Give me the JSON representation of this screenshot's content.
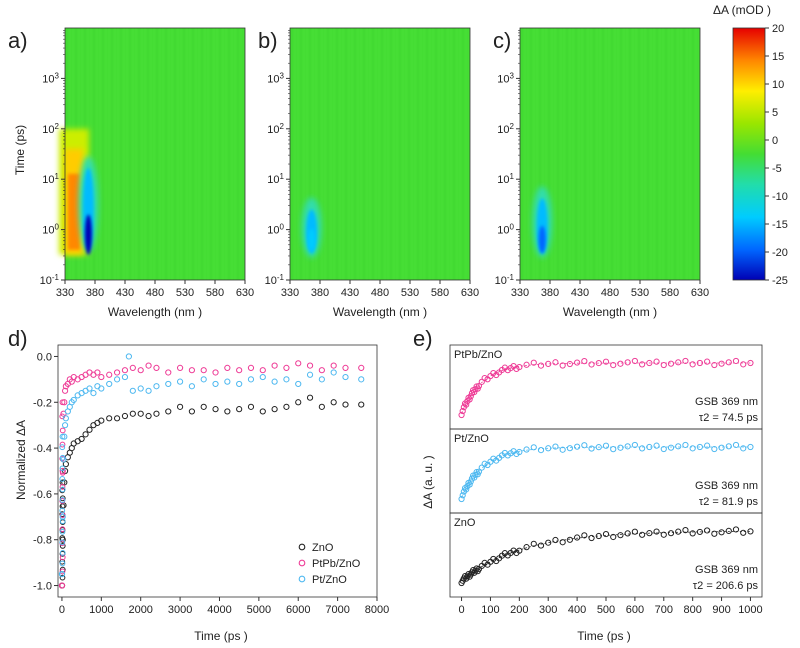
{
  "chart_data": [
    {
      "panel": "a)",
      "type": "heatmap",
      "xlabel": "Wavelength (nm )",
      "ylabel": "Time (ps)",
      "x_ticks": [
        330,
        380,
        430,
        480,
        530,
        580,
        630
      ],
      "y_ticks": [
        "10-1",
        "100",
        "101",
        "102",
        "103"
      ],
      "xlim": [
        330,
        630
      ],
      "ylim": [
        0.1,
        10000
      ],
      "y_scale": "log",
      "features": [
        {
          "kind": "positive band",
          "wavelength_nm": 345,
          "time_range_ps": [
            0.5,
            100
          ],
          "peak_mOD": 14
        },
        {
          "kind": "negative band",
          "wavelength_nm": 369,
          "time_range_ps": [
            0.5,
            20
          ],
          "peak_mOD": -24
        }
      ]
    },
    {
      "panel": "b)",
      "type": "heatmap",
      "xlabel": "Wavelength (nm )",
      "x_ticks": [
        330,
        380,
        430,
        480,
        530,
        580,
        630
      ],
      "y_ticks": [
        "10-1",
        "100",
        "101",
        "102",
        "103"
      ],
      "xlim": [
        330,
        630
      ],
      "ylim": [
        0.1,
        10000
      ],
      "y_scale": "log",
      "features": [
        {
          "kind": "negative band",
          "wavelength_nm": 366,
          "time_range_ps": [
            0.4,
            3
          ],
          "peak_mOD": -14
        }
      ]
    },
    {
      "panel": "c)",
      "type": "heatmap",
      "xlabel": "Wavelength (nm )",
      "x_ticks": [
        330,
        380,
        430,
        480,
        530,
        580,
        630
      ],
      "y_ticks": [
        "10-1",
        "100",
        "101",
        "102",
        "103"
      ],
      "xlim": [
        330,
        630
      ],
      "ylim": [
        0.1,
        10000
      ],
      "y_scale": "log",
      "features": [
        {
          "kind": "negative band",
          "wavelength_nm": 367,
          "time_range_ps": [
            0.4,
            5
          ],
          "peak_mOD": -19
        }
      ],
      "colorbar": {
        "label": "ΔA  (mOD )",
        "range": [
          -25,
          20
        ],
        "ticks": [
          20,
          15,
          10,
          5,
          0,
          -5,
          -10,
          -15,
          -20,
          -25
        ]
      }
    },
    {
      "panel": "d)",
      "type": "scatter",
      "xlabel": "Time (ps )",
      "ylabel": "Normalized ΔA",
      "xlim": [
        -100,
        8000
      ],
      "ylim": [
        -1.05,
        0.05
      ],
      "x_ticks": [
        0,
        1000,
        2000,
        3000,
        4000,
        5000,
        6000,
        7000,
        8000
      ],
      "y_ticks": [
        "0.0",
        "-0.2",
        "-0.4",
        "-0.6",
        "-0.8",
        "-1.0"
      ],
      "legend_position": "bottom-right",
      "series": [
        {
          "name": "ZnO",
          "color": "#222222",
          "x": [
            0,
            20,
            40,
            60,
            80,
            100,
            150,
            200,
            250,
            300,
            400,
            500,
            600,
            700,
            800,
            900,
            1000,
            1200,
            1400,
            1600,
            1800,
            2000,
            2200,
            2400,
            2700,
            3000,
            3300,
            3600,
            3900,
            4200,
            4500,
            4800,
            5100,
            5400,
            5700,
            6000,
            6300,
            6600,
            6900,
            7200,
            7600
          ],
          "y": [
            -1.0,
            -0.8,
            -0.65,
            -0.55,
            -0.5,
            -0.47,
            -0.44,
            -0.42,
            -0.4,
            -0.38,
            -0.37,
            -0.36,
            -0.34,
            -0.32,
            -0.3,
            -0.29,
            -0.28,
            -0.27,
            -0.27,
            -0.26,
            -0.25,
            -0.25,
            -0.26,
            -0.25,
            -0.24,
            -0.22,
            -0.24,
            -0.22,
            -0.23,
            -0.24,
            -0.23,
            -0.22,
            -0.24,
            -0.23,
            -0.22,
            -0.2,
            -0.18,
            -0.22,
            -0.2,
            -0.21,
            -0.21
          ]
        },
        {
          "name": "PtPb/ZnO",
          "color": "#ee3b96",
          "x": [
            0,
            20,
            40,
            60,
            80,
            100,
            150,
            200,
            250,
            300,
            400,
            500,
            600,
            700,
            800,
            900,
            1000,
            1200,
            1400,
            1600,
            1800,
            2000,
            2200,
            2400,
            2700,
            3000,
            3300,
            3600,
            3900,
            4200,
            4500,
            4800,
            5100,
            5400,
            5700,
            6000,
            6300,
            6600,
            6900,
            7200,
            7600
          ],
          "y": [
            -1.0,
            -0.5,
            -0.25,
            -0.2,
            -0.15,
            -0.13,
            -0.12,
            -0.1,
            -0.11,
            -0.09,
            -0.1,
            -0.09,
            -0.08,
            -0.07,
            -0.08,
            -0.07,
            -0.09,
            -0.08,
            -0.07,
            -0.06,
            -0.05,
            -0.06,
            -0.04,
            -0.05,
            -0.07,
            -0.05,
            -0.06,
            -0.06,
            -0.07,
            -0.05,
            -0.06,
            -0.05,
            -0.06,
            -0.04,
            -0.05,
            -0.03,
            -0.04,
            -0.06,
            -0.04,
            -0.05,
            -0.05
          ]
        },
        {
          "name": "Pt/ZnO",
          "color": "#4db8f0",
          "x": [
            0,
            20,
            40,
            60,
            80,
            100,
            150,
            200,
            250,
            300,
            400,
            500,
            600,
            700,
            800,
            900,
            1000,
            1200,
            1400,
            1600,
            1700,
            1800,
            2000,
            2200,
            2400,
            2700,
            3000,
            3300,
            3600,
            3900,
            4200,
            4500,
            4800,
            5100,
            5400,
            5700,
            6000,
            6300,
            6600,
            6900,
            7200,
            7600
          ],
          "y": [
            -0.95,
            -0.7,
            -0.45,
            -0.35,
            -0.3,
            -0.27,
            -0.24,
            -0.22,
            -0.2,
            -0.19,
            -0.17,
            -0.16,
            -0.15,
            -0.14,
            -0.16,
            -0.13,
            -0.14,
            -0.12,
            -0.1,
            -0.09,
            0.0,
            -0.15,
            -0.14,
            -0.15,
            -0.13,
            -0.12,
            -0.11,
            -0.13,
            -0.1,
            -0.12,
            -0.11,
            -0.12,
            -0.1,
            -0.09,
            -0.11,
            -0.1,
            -0.12,
            -0.08,
            -0.1,
            -0.07,
            -0.09,
            -0.1
          ]
        }
      ]
    },
    {
      "panel": "e)",
      "type": "scatter",
      "xlabel": "Time (ps )",
      "ylabel": "ΔA  (a. u. )",
      "xlim": [
        -40,
        1040
      ],
      "x_ticks": [
        0,
        100,
        200,
        300,
        400,
        500,
        600,
        700,
        800,
        900,
        1000
      ],
      "subplots": [
        {
          "name": "PtPb/ZnO",
          "color": "#ee3b96",
          "annotation": "GSB 369 nm",
          "tau": "τ2 = 74.5 ps",
          "tau_value_ps": 74.5
        },
        {
          "name": "Pt/ZnO",
          "color": "#4db8f0",
          "annotation": "GSB 369 nm",
          "tau": "τ2 = 81.9 ps",
          "tau_value_ps": 81.9
        },
        {
          "name": "ZnO",
          "color": "#222222",
          "annotation": "GSB 369 nm",
          "tau": "τ2 = 206.6 ps",
          "tau_value_ps": 206.6
        }
      ]
    }
  ]
}
